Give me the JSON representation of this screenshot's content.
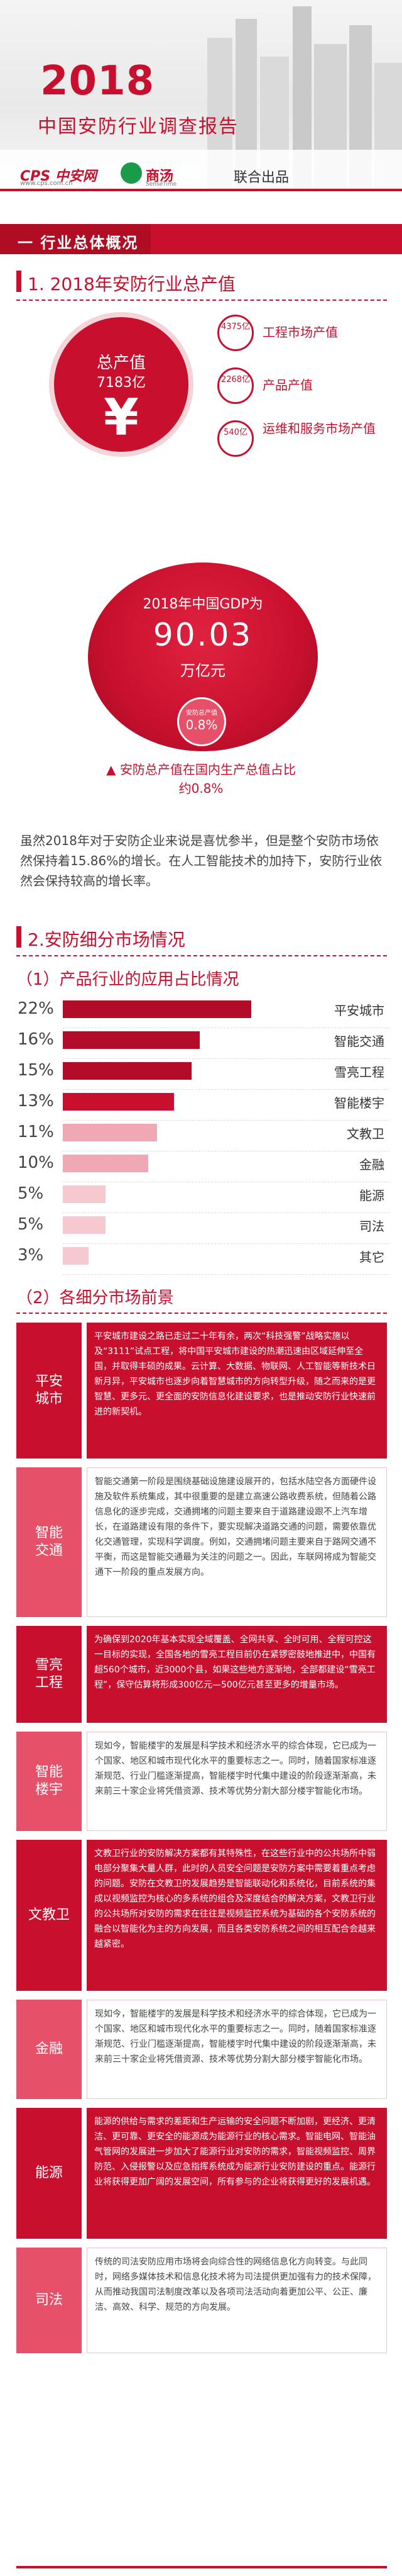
{
  "header": {
    "year": "2018",
    "title": "中国安防行业调查报告",
    "logo_cps": "CPS 中安网",
    "logo_cps_sub": "www.cps.com.cn",
    "logo_shangtang": "商汤",
    "logo_shangtang_sub": "SenseTime",
    "joint_text": "联合出品"
  },
  "section1": {
    "title": "一 行业总体概况",
    "subheading": "1. 2018年安防行业总产值",
    "total": {
      "label": "总产值",
      "value": "7183亿",
      "symbol": "¥"
    },
    "segments": [
      {
        "value": "4375亿",
        "label": "工程市场产值"
      },
      {
        "value": "2268亿",
        "label": "产品产值"
      },
      {
        "value": "540亿",
        "label": "运维和服务市场产值"
      }
    ],
    "gdp": {
      "label": "2018年中国GDP为",
      "value": "90.03",
      "unit": "万亿元",
      "share_label": "安防总产值",
      "share_value": "0.8%",
      "note": "▲ 安防总产值在国内生产总值占比约0.8%"
    },
    "paragraph": "虽然2018年对于安防企业来说是喜忧参半，但是整个安防市场依然保持着15.86%的增长。在人工智能技术的加持下，安防行业依然会保持较高的增长率。"
  },
  "section2": {
    "subheading": "2.安防细分市场情况",
    "bars_heading": "（1）产品行业的应用占比情况",
    "market_heading": "（2）各细分市场前景"
  },
  "chart_data": {
    "type": "bar",
    "title": "产品行业的应用占比情况",
    "categories": [
      "平安城市",
      "智能交通",
      "雪亮工程",
      "智能楼宇",
      "文教卫",
      "金融",
      "能源",
      "司法",
      "其它"
    ],
    "values": [
      22,
      16,
      15,
      13,
      11,
      10,
      5,
      5,
      3
    ],
    "value_labels": [
      "22%",
      "16%",
      "15%",
      "13%",
      "11%",
      "10%",
      "5%",
      "5%",
      "3%"
    ],
    "unit": "%",
    "xlabel": "",
    "ylabel": "",
    "colors": [
      "#b30c28",
      "#b30c28",
      "#b30c28",
      "#c8102e",
      "#f0a8b4",
      "#f0a8b4",
      "#f6c9d1",
      "#f6c9d1",
      "#f6c9d1"
    ]
  },
  "markets": [
    {
      "name": "平安\n城市",
      "text": "平安城市建设之路已走过二十年有余，两次“科技强警”战略实施以及“3111”试点工程，将中国平安城市建设的热潮迅速由区域延伸至全国，并取得丰硕的成果。云计算、大数据、物联网、人工智能等新技术日新月异，平安城市也逐步向着智慧城市的方向转型升级，随之而来的是更智慧、更多元、更全面的安防信息化建设要求，也是推动安防行业快速前进的新契机。",
      "style": "dark"
    },
    {
      "name": "智能\n交通",
      "text": "智能交通第一阶段是围绕基础设施建设展开的，包括水陆空各方面硬件设施及软件系统集成，其中很重要的是建立高速公路收费系统，但随着公路信息化的逐步完成，交通拥堵的问题主要来自于道路建设跟不上汽车增长，在道路建设有限的条件下，要实现解决道路交通的问题，需要依靠优化交通管理，实现科学调度。例如，交通拥堵问题主要来自于路网交通不平衡，而这是智能交通最为关注的问题之一。因此，车联网将成为智能交通下一阶段的重点发展方向。",
      "style": "light"
    },
    {
      "name": "雪亮\n工程",
      "text": "为确保到2020年基本实现全域覆盖、全网共享、全时可用、全程可控这一目标的实现，全国各地的雪亮工程目前仍在紧锣密鼓地推进中，中国有超560个城市，近3000个县，如果这些地方逐渐地，全部都建设“雪亮工程”，保守估算将形成300亿元—500亿元甚至更多的增量市场。",
      "style": "dark"
    },
    {
      "name": "智能\n楼宇",
      "text": "现如今，智能楼宇的发展是科学技术和经济水平的综合体现，它已成为一个国家、地区和城市现代化水平的重要标志之一。同时，随着国家标准逐渐规范、行业门槛逐渐提高，智能楼宇时代集中建设的阶段逐渐渐高，未来前三十家企业将凭借资源、技术等优势分割大部分楼宇智能化市场。",
      "style": "light"
    },
    {
      "name": "文教卫",
      "text": "文教卫行业的安防解决方案都有其特殊性，在这些行业中的公共场所中弱电部分聚集大量人群，此时的人员安全问题是安防方案中需要着重点考虑的问题。安防在文教卫的发展趋势是智能联动化和系统化，目前系统的集成以视频监控为核心的多系统的组合及深度结合的解决方案，文教卫行业的公共场所对安防的需求在往往是视频监控系统为基础的各个安防系统的融合以智能化为主的方向发展，而且各类安防系统之间的相互配合会越来越紧密。",
      "style": "dark"
    },
    {
      "name": "金融",
      "text": "现如今，智能楼宇的发展是科学技术和经济水平的综合体现，它已成为一个国家、地区和城市现代化水平的重要标志之一。同时，随着国家标准逐渐规范、行业门槛逐渐提高，智能楼宇时代集中建设的阶段逐渐渐高，未来前三十家企业将凭借资源、技术等优势分割大部分楼宇智能化市场。",
      "style": "light"
    },
    {
      "name": "能源",
      "text": "能源的供给与需求的差距和生产运输的安全问题不断加剧，更经济、更清洁、更可靠、更安全的能源成为能源行业的核心需求。智能电网、智能油气管网的发展进一步加大了能源行业对安防的需求，智能视频监控、周界防范、入侵报警以及应急指挥系统成为能源行业安防建设的重点。能源行业将获得更加广阔的发展空间，所有参与的企业将获得更好的发展机遇。",
      "style": "dark"
    },
    {
      "name": "司法",
      "text": "传统的司法安防应用市场将会向综合性的网络信息化方向转变。与此同时，网络多媒体技术和信息化技术将为司法提供更加强有力的技术保障，从而推动我国司法制度改革以及各项司法活动向着更加公平、公正、廉洁、高效、科学、规范的方向发展。",
      "style": "light"
    }
  ]
}
